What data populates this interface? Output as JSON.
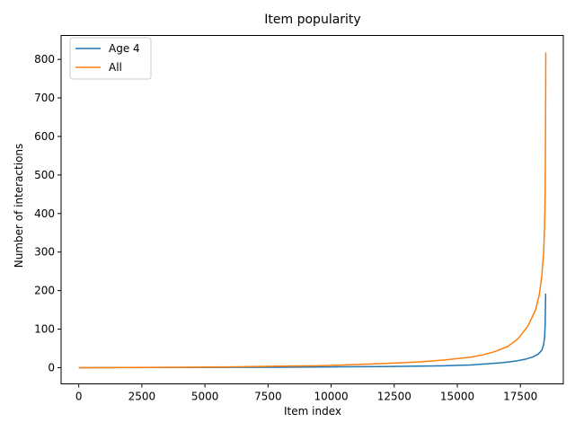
{
  "chart_data": {
    "type": "line",
    "title": "Item popularity",
    "xlabel": "Item index",
    "ylabel": "Number of interactions",
    "xlim": [
      -700,
      19200
    ],
    "ylim": [
      -42,
      862
    ],
    "xticks": [
      0,
      2500,
      5000,
      7500,
      10000,
      12500,
      15000,
      17500
    ],
    "xtick_labels": [
      "0",
      "2500",
      "5000",
      "7500",
      "10000",
      "12500",
      "15000",
      "17500"
    ],
    "yticks": [
      0,
      100,
      200,
      300,
      400,
      500,
      600,
      700,
      800
    ],
    "ytick_labels": [
      "0",
      "100",
      "200",
      "300",
      "400",
      "500",
      "600",
      "700",
      "800"
    ],
    "grid": false,
    "legend_position": "upper-left",
    "series": [
      {
        "name": "Age 4",
        "color": "#1f77b4",
        "points": [
          [
            0,
            0
          ],
          [
            4000,
            0.5
          ],
          [
            8000,
            1
          ],
          [
            10000,
            2
          ],
          [
            12000,
            3
          ],
          [
            13500,
            4
          ],
          [
            14500,
            5
          ],
          [
            15500,
            7
          ],
          [
            16200,
            10
          ],
          [
            16800,
            13
          ],
          [
            17300,
            17
          ],
          [
            17700,
            22
          ],
          [
            18000,
            28
          ],
          [
            18200,
            35
          ],
          [
            18350,
            45
          ],
          [
            18420,
            60
          ],
          [
            18460,
            80
          ],
          [
            18480,
            110
          ],
          [
            18490,
            150
          ],
          [
            18500,
            192
          ]
        ]
      },
      {
        "name": "All",
        "color": "#ff7f0e",
        "points": [
          [
            0,
            0
          ],
          [
            2000,
            0.5
          ],
          [
            4000,
            1
          ],
          [
            6000,
            2
          ],
          [
            8000,
            4
          ],
          [
            9500,
            5
          ],
          [
            11000,
            8
          ],
          [
            12500,
            12
          ],
          [
            13500,
            15
          ],
          [
            14500,
            20
          ],
          [
            15500,
            27
          ],
          [
            16000,
            33
          ],
          [
            16500,
            42
          ],
          [
            17000,
            55
          ],
          [
            17400,
            75
          ],
          [
            17800,
            108
          ],
          [
            18100,
            150
          ],
          [
            18250,
            190
          ],
          [
            18350,
            240
          ],
          [
            18420,
            300
          ],
          [
            18460,
            370
          ],
          [
            18480,
            450
          ],
          [
            18490,
            550
          ],
          [
            18500,
            700
          ],
          [
            18505,
            818
          ]
        ]
      }
    ]
  }
}
